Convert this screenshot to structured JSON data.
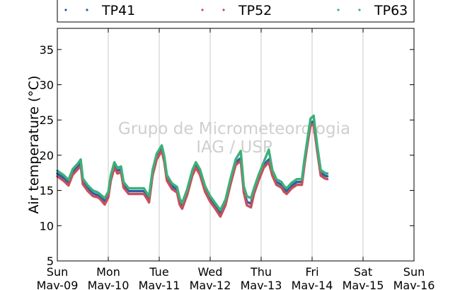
{
  "chart_data": {
    "type": "line",
    "title": "",
    "xlabel": "",
    "ylabel": "Air temperature (°C)",
    "ylim": [
      5,
      38
    ],
    "yticks": [
      5,
      10,
      15,
      20,
      25,
      30,
      35
    ],
    "xlim_days": [
      0,
      7
    ],
    "xtick_labels": [
      {
        "day": "Sun",
        "date": "Mav-09"
      },
      {
        "day": "Mon",
        "date": "Mav-10"
      },
      {
        "day": "Tue",
        "date": "Mav-11"
      },
      {
        "day": "Wed",
        "date": "Mav-12"
      },
      {
        "day": "Thu",
        "date": "Mav-13"
      },
      {
        "day": "Fri",
        "date": "Mav-14"
      },
      {
        "day": "Sat",
        "date": "Mav-15"
      },
      {
        "day": "Sun",
        "date": "Mav-16"
      }
    ],
    "grid": "vertical",
    "legend_position": "top",
    "watermark": [
      "Grupo de Micrometeorologia",
      "IAG / USP"
    ],
    "x_unit_note": "x = fraction of days after Sun Mav-09 00:00",
    "series": [
      {
        "name": "TP41",
        "color": "#2b5fa6",
        "points": [
          [
            0.0,
            17.4
          ],
          [
            0.12,
            16.8
          ],
          [
            0.22,
            16.1
          ],
          [
            0.3,
            17.6
          ],
          [
            0.4,
            18.4
          ],
          [
            0.46,
            19.0
          ],
          [
            0.5,
            16.3
          ],
          [
            0.6,
            15.3
          ],
          [
            0.7,
            14.6
          ],
          [
            0.8,
            14.3
          ],
          [
            0.85,
            14.0
          ],
          [
            0.93,
            13.5
          ],
          [
            1.0,
            14.4
          ],
          [
            1.05,
            16.8
          ],
          [
            1.12,
            18.6
          ],
          [
            1.18,
            17.8
          ],
          [
            1.25,
            18.0
          ],
          [
            1.3,
            15.8
          ],
          [
            1.4,
            14.9
          ],
          [
            1.6,
            14.9
          ],
          [
            1.7,
            14.9
          ],
          [
            1.76,
            14.2
          ],
          [
            1.8,
            13.8
          ],
          [
            1.87,
            17.5
          ],
          [
            1.95,
            19.8
          ],
          [
            2.05,
            21.0
          ],
          [
            2.1,
            19.4
          ],
          [
            2.15,
            16.8
          ],
          [
            2.25,
            15.6
          ],
          [
            2.35,
            15.1
          ],
          [
            2.4,
            13.5
          ],
          [
            2.45,
            12.8
          ],
          [
            2.55,
            14.8
          ],
          [
            2.65,
            17.5
          ],
          [
            2.72,
            18.6
          ],
          [
            2.8,
            17.6
          ],
          [
            2.9,
            15.2
          ],
          [
            3.0,
            13.8
          ],
          [
            3.1,
            12.8
          ],
          [
            3.2,
            11.8
          ],
          [
            3.3,
            13.3
          ],
          [
            3.4,
            16.3
          ],
          [
            3.5,
            19.0
          ],
          [
            3.6,
            19.6
          ],
          [
            3.66,
            15.2
          ],
          [
            3.72,
            13.4
          ],
          [
            3.8,
            13.1
          ],
          [
            3.86,
            14.9
          ],
          [
            3.95,
            16.8
          ],
          [
            4.05,
            18.6
          ],
          [
            4.15,
            19.4
          ],
          [
            4.22,
            17.5
          ],
          [
            4.3,
            16.2
          ],
          [
            4.4,
            15.8
          ],
          [
            4.45,
            15.2
          ],
          [
            4.5,
            14.9
          ],
          [
            4.6,
            15.7
          ],
          [
            4.7,
            16.2
          ],
          [
            4.8,
            16.2
          ],
          [
            4.85,
            19.0
          ],
          [
            4.92,
            22.4
          ],
          [
            4.97,
            24.6
          ],
          [
            5.03,
            24.8
          ],
          [
            5.1,
            21.0
          ],
          [
            5.17,
            17.5
          ],
          [
            5.25,
            17.1
          ],
          [
            5.3,
            17.0
          ]
        ]
      },
      {
        "name": "TP52",
        "color": "#c8505a",
        "points": [
          [
            0.0,
            17.0
          ],
          [
            0.12,
            16.4
          ],
          [
            0.22,
            15.7
          ],
          [
            0.3,
            17.2
          ],
          [
            0.4,
            18.0
          ],
          [
            0.46,
            18.5
          ],
          [
            0.5,
            15.9
          ],
          [
            0.6,
            14.9
          ],
          [
            0.7,
            14.2
          ],
          [
            0.8,
            14.0
          ],
          [
            0.85,
            13.7
          ],
          [
            0.93,
            13.0
          ],
          [
            1.0,
            14.0
          ],
          [
            1.05,
            16.4
          ],
          [
            1.12,
            18.2
          ],
          [
            1.18,
            17.4
          ],
          [
            1.25,
            17.6
          ],
          [
            1.3,
            15.4
          ],
          [
            1.4,
            14.5
          ],
          [
            1.6,
            14.5
          ],
          [
            1.7,
            14.5
          ],
          [
            1.76,
            13.8
          ],
          [
            1.8,
            13.3
          ],
          [
            1.87,
            17.1
          ],
          [
            1.95,
            19.4
          ],
          [
            2.05,
            20.6
          ],
          [
            2.1,
            19.0
          ],
          [
            2.15,
            16.4
          ],
          [
            2.25,
            15.2
          ],
          [
            2.35,
            14.7
          ],
          [
            2.4,
            13.0
          ],
          [
            2.45,
            12.4
          ],
          [
            2.55,
            14.4
          ],
          [
            2.65,
            17.1
          ],
          [
            2.72,
            18.2
          ],
          [
            2.8,
            17.2
          ],
          [
            2.9,
            14.8
          ],
          [
            3.0,
            13.4
          ],
          [
            3.1,
            12.4
          ],
          [
            3.2,
            11.3
          ],
          [
            3.3,
            12.9
          ],
          [
            3.4,
            15.9
          ],
          [
            3.5,
            18.6
          ],
          [
            3.6,
            19.2
          ],
          [
            3.66,
            14.7
          ],
          [
            3.72,
            12.9
          ],
          [
            3.8,
            12.6
          ],
          [
            3.86,
            14.5
          ],
          [
            3.95,
            16.4
          ],
          [
            4.05,
            18.2
          ],
          [
            4.15,
            19.0
          ],
          [
            4.22,
            17.1
          ],
          [
            4.3,
            15.8
          ],
          [
            4.4,
            15.4
          ],
          [
            4.45,
            14.8
          ],
          [
            4.5,
            14.5
          ],
          [
            4.6,
            15.3
          ],
          [
            4.7,
            15.8
          ],
          [
            4.8,
            15.8
          ],
          [
            4.85,
            18.6
          ],
          [
            4.92,
            22.0
          ],
          [
            4.97,
            24.2
          ],
          [
            5.03,
            24.4
          ],
          [
            5.1,
            20.6
          ],
          [
            5.17,
            17.1
          ],
          [
            5.25,
            16.7
          ],
          [
            5.3,
            16.6
          ]
        ]
      },
      {
        "name": "TP63",
        "color": "#3cb07a",
        "points": [
          [
            0.0,
            17.8
          ],
          [
            0.12,
            17.2
          ],
          [
            0.22,
            16.5
          ],
          [
            0.3,
            18.0
          ],
          [
            0.4,
            18.8
          ],
          [
            0.46,
            19.4
          ],
          [
            0.5,
            16.7
          ],
          [
            0.6,
            15.7
          ],
          [
            0.7,
            15.0
          ],
          [
            0.8,
            14.7
          ],
          [
            0.85,
            14.4
          ],
          [
            0.93,
            13.9
          ],
          [
            1.0,
            14.8
          ],
          [
            1.05,
            17.2
          ],
          [
            1.12,
            19.0
          ],
          [
            1.18,
            18.2
          ],
          [
            1.25,
            18.4
          ],
          [
            1.3,
            16.2
          ],
          [
            1.4,
            15.3
          ],
          [
            1.6,
            15.3
          ],
          [
            1.7,
            15.3
          ],
          [
            1.76,
            14.6
          ],
          [
            1.8,
            14.2
          ],
          [
            1.87,
            17.9
          ],
          [
            1.95,
            20.2
          ],
          [
            2.05,
            21.4
          ],
          [
            2.1,
            19.8
          ],
          [
            2.15,
            17.2
          ],
          [
            2.25,
            16.0
          ],
          [
            2.35,
            15.5
          ],
          [
            2.4,
            13.9
          ],
          [
            2.45,
            13.2
          ],
          [
            2.55,
            15.2
          ],
          [
            2.65,
            17.9
          ],
          [
            2.72,
            19.0
          ],
          [
            2.8,
            18.0
          ],
          [
            2.9,
            15.6
          ],
          [
            3.0,
            14.2
          ],
          [
            3.1,
            13.2
          ],
          [
            3.2,
            12.2
          ],
          [
            3.3,
            13.7
          ],
          [
            3.4,
            16.7
          ],
          [
            3.5,
            19.4
          ],
          [
            3.6,
            20.6
          ],
          [
            3.66,
            15.6
          ],
          [
            3.72,
            14.2
          ],
          [
            3.8,
            13.9
          ],
          [
            3.86,
            15.3
          ],
          [
            3.95,
            17.2
          ],
          [
            4.05,
            19.0
          ],
          [
            4.15,
            20.8
          ],
          [
            4.22,
            17.9
          ],
          [
            4.3,
            16.6
          ],
          [
            4.4,
            16.2
          ],
          [
            4.45,
            15.6
          ],
          [
            4.5,
            15.3
          ],
          [
            4.6,
            16.1
          ],
          [
            4.7,
            16.6
          ],
          [
            4.8,
            16.6
          ],
          [
            4.85,
            19.4
          ],
          [
            4.92,
            22.8
          ],
          [
            4.97,
            25.2
          ],
          [
            5.03,
            25.6
          ],
          [
            5.1,
            21.4
          ],
          [
            5.17,
            17.9
          ],
          [
            5.25,
            17.5
          ],
          [
            5.3,
            17.4
          ]
        ]
      }
    ]
  }
}
